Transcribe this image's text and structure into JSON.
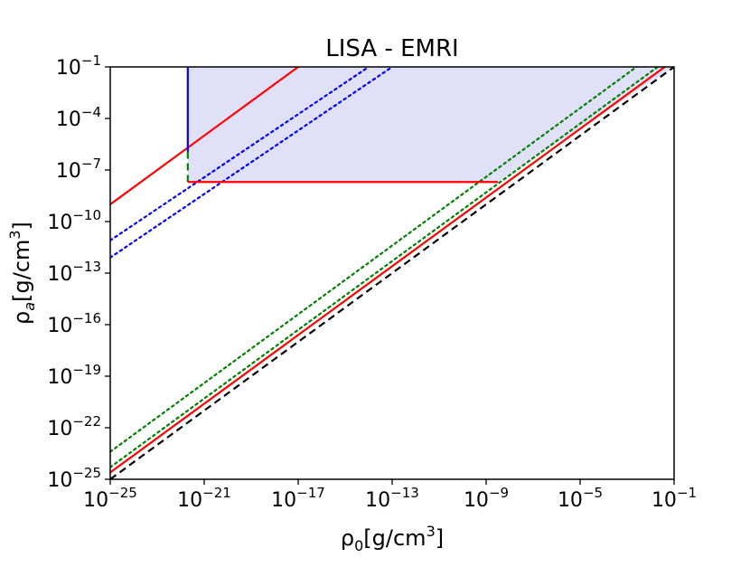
{
  "chart_data": {
    "type": "line",
    "title": "LISA - EMRI",
    "xlabel": "ρ0[g/cm3]",
    "ylabel": "ρa[g/cm3]",
    "x_scale": "log",
    "y_scale": "log",
    "xlim": [
      1e-25,
      0.1
    ],
    "ylim": [
      1e-25,
      0.1
    ],
    "grid": false,
    "x_ticks": [
      {
        "label_base": "10",
        "label_exp": "−25",
        "value": 1e-25
      },
      {
        "label_base": "10",
        "label_exp": "−21",
        "value": 1e-21
      },
      {
        "label_base": "10",
        "label_exp": "−17",
        "value": 1e-17
      },
      {
        "label_base": "10",
        "label_exp": "−13",
        "value": 1e-13
      },
      {
        "label_base": "10",
        "label_exp": "−9",
        "value": 1e-09
      },
      {
        "label_base": "10",
        "label_exp": "−5",
        "value": 1e-05
      },
      {
        "label_base": "10",
        "label_exp": "−1",
        "value": 0.1
      }
    ],
    "y_ticks": [
      {
        "label_base": "10",
        "label_exp": "−25",
        "value": 1e-25
      },
      {
        "label_base": "10",
        "label_exp": "−22",
        "value": 1e-22
      },
      {
        "label_base": "10",
        "label_exp": "−19",
        "value": 1e-19
      },
      {
        "label_base": "10",
        "label_exp": "−16",
        "value": 1e-16
      },
      {
        "label_base": "10",
        "label_exp": "−13",
        "value": 1e-13
      },
      {
        "label_base": "10",
        "label_exp": "−10",
        "value": 1e-10
      },
      {
        "label_base": "10",
        "label_exp": "−7",
        "value": 1e-07
      },
      {
        "label_base": "10",
        "label_exp": "−4",
        "value": 0.0001
      },
      {
        "label_base": "10",
        "label_exp": "−1",
        "value": 0.1
      }
    ],
    "shaded_region": {
      "color": "#e0e0f8",
      "polygon": [
        [
          2e-22,
          2e-08
        ],
        [
          3.2e-09,
          2e-08
        ],
        [
          0.1,
          0.1
        ],
        [
          2e-22,
          0.1
        ]
      ]
    },
    "series": [
      {
        "style": "dashed",
        "color": "#000000",
        "points": [
          [
            1e-25,
            1e-25
          ],
          [
            0.1,
            0.1
          ]
        ]
      },
      {
        "style": "solid",
        "color": "#ff0000",
        "points": [
          [
            1e-25,
            2.5e-25
          ],
          [
            0.1,
            0.25
          ]
        ]
      },
      {
        "style": "dotted",
        "color": "#008000",
        "points": [
          [
            1e-25,
            5e-25
          ],
          [
            0.1,
            0.5
          ]
        ]
      },
      {
        "style": "dotted",
        "color": "#008000",
        "points": [
          [
            1e-25,
            4e-24
          ],
          [
            0.1,
            4
          ]
        ]
      },
      {
        "style": "solid",
        "color": "#ff0000",
        "points": [
          [
            1e-25,
            1e-09
          ],
          [
            1e-17,
            0.1
          ]
        ]
      },
      {
        "style": "dotted",
        "color": "#0000ff",
        "points": [
          [
            1e-25,
            8e-12
          ],
          [
            1e-14,
            0.1
          ]
        ]
      },
      {
        "style": "dotted",
        "color": "#0000ff",
        "points": [
          [
            1e-25,
            8e-13
          ],
          [
            1e-13,
            0.1
          ]
        ]
      },
      {
        "style": "solid",
        "color": "#0000ff",
        "points": [
          [
            2e-22,
            0.1
          ],
          [
            2e-22,
            1.2e-06
          ]
        ]
      },
      {
        "style": "dashed",
        "color": "#008000",
        "points": [
          [
            2e-22,
            1.2e-06
          ],
          [
            2e-22,
            2e-08
          ]
        ]
      },
      {
        "style": "solid",
        "color": "#ff0000",
        "points": [
          [
            2e-22,
            2e-08
          ],
          [
            3.2e-09,
            2e-08
          ]
        ]
      }
    ]
  }
}
